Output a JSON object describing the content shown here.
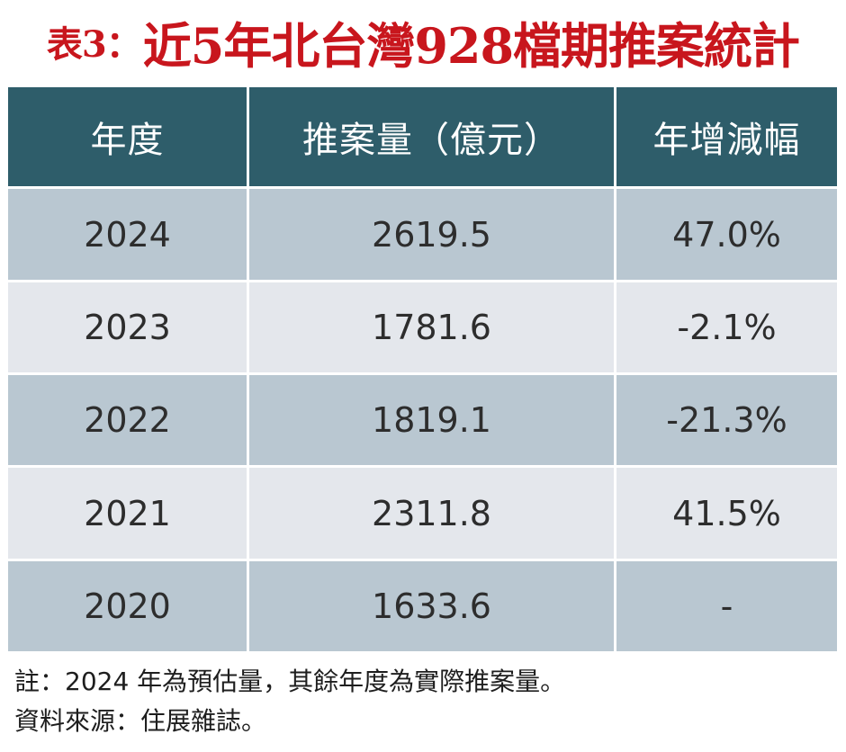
{
  "title": {
    "label": "表3：",
    "main": "近5年北台灣928檔期推案統計"
  },
  "table": {
    "headers": [
      "年度",
      "推案量（億元）",
      "年增減幅"
    ],
    "rows": [
      {
        "year": "2024",
        "volume": "2619.5",
        "change": "47.0%"
      },
      {
        "year": "2023",
        "volume": "1781.6",
        "change": "-2.1%"
      },
      {
        "year": "2022",
        "volume": "1819.1",
        "change": "-21.3%"
      },
      {
        "year": "2021",
        "volume": "2311.8",
        "change": "41.5%"
      },
      {
        "year": "2020",
        "volume": "1633.6",
        "change": "-"
      }
    ]
  },
  "notes": {
    "note": "註：2024 年為預估量，其餘年度為實際推案量。",
    "source": "資料來源：住展雜誌。"
  },
  "colors": {
    "title_red": "#c8161d",
    "header_teal": "#2e5d6a",
    "row_dark": "#b9c7d1",
    "row_light": "#e4e7ec"
  }
}
